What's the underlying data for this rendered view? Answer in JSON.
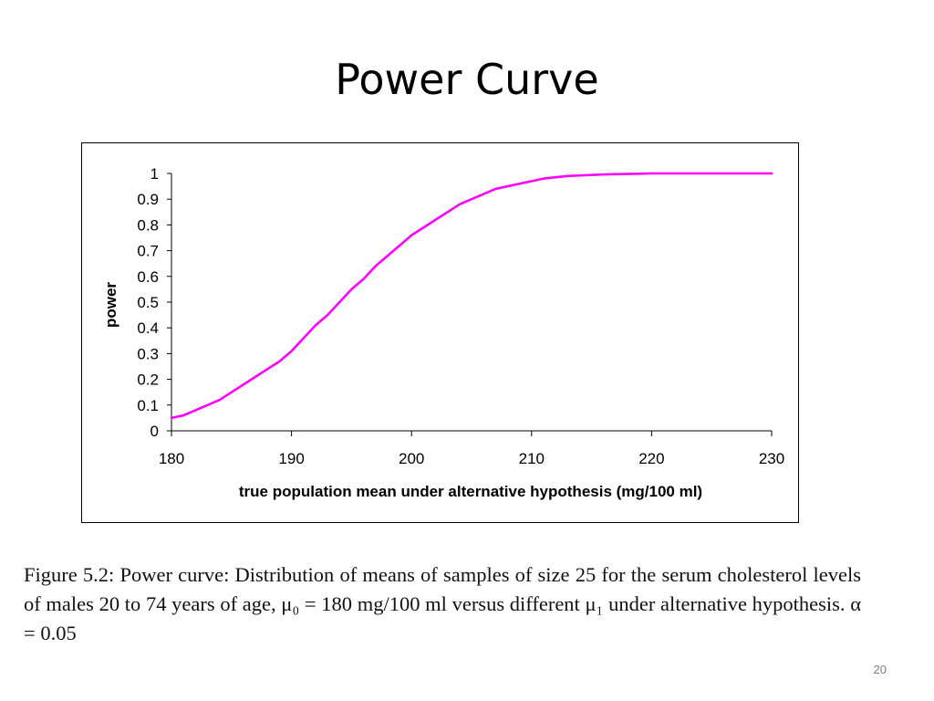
{
  "slide": {
    "title": "Power Curve",
    "caption": "Figure 5.2:  Power curve:  Distribution of means of samples of size 25 for the serum cholesterol levels of males 20 to 74 years of age, μ₀ = 180 mg/100 ml versus different μ₁ under alternative hypothesis.  α = 0.05",
    "page_number": "20"
  },
  "chart_data": {
    "type": "line",
    "title": "",
    "xlabel": "true population mean under alternative hypothesis (mg/100 ml)",
    "ylabel": "power",
    "xlim": [
      180,
      230
    ],
    "ylim": [
      0,
      1
    ],
    "x_ticks": [
      "180",
      "190",
      "200",
      "210",
      "220",
      "230"
    ],
    "y_ticks": [
      "0",
      "0.1",
      "0.2",
      "0.3",
      "0.4",
      "0.5",
      "0.6",
      "0.7",
      "0.8",
      "0.9",
      "1"
    ],
    "grid": false,
    "legend": "none",
    "series": [
      {
        "color": "#ff00ff",
        "x": [
          180,
          181,
          182,
          183,
          184,
          185,
          186,
          187,
          188,
          189,
          190,
          191,
          192,
          193,
          194,
          195,
          196,
          197,
          198,
          199,
          200,
          201,
          202,
          203,
          204,
          205,
          206,
          207,
          208,
          209,
          210,
          211,
          212,
          213,
          214,
          215,
          216,
          217,
          218,
          219,
          220,
          222,
          224,
          226,
          228,
          230
        ],
        "y": [
          0.05,
          0.06,
          0.08,
          0.1,
          0.12,
          0.15,
          0.18,
          0.21,
          0.24,
          0.27,
          0.31,
          0.36,
          0.41,
          0.45,
          0.5,
          0.55,
          0.59,
          0.64,
          0.68,
          0.72,
          0.76,
          0.79,
          0.82,
          0.85,
          0.88,
          0.9,
          0.92,
          0.94,
          0.95,
          0.96,
          0.97,
          0.98,
          0.985,
          0.99,
          0.992,
          0.994,
          0.996,
          0.997,
          0.998,
          0.999,
          1.0,
          1.0,
          1.0,
          1.0,
          1.0,
          1.0
        ]
      }
    ]
  }
}
